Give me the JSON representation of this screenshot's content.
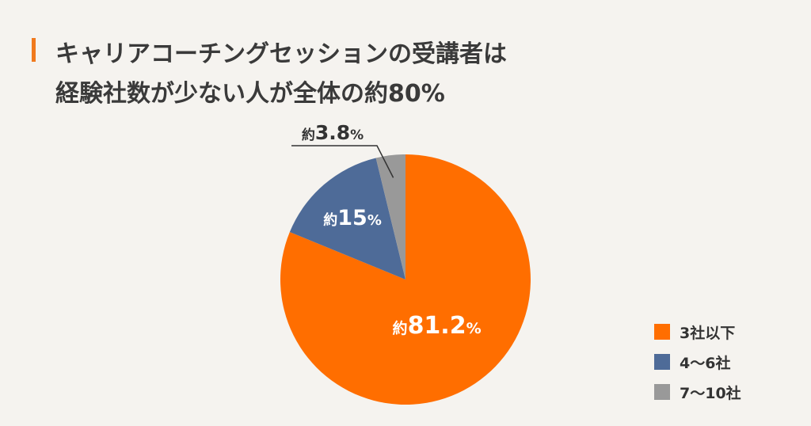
{
  "title": {
    "line1": "キャリアコーチングセッションの受講者は",
    "line2": "経験社数が少ない人が全体の約80%",
    "accent_color": "#f07a1e"
  },
  "chart_data": {
    "type": "pie",
    "categories": [
      "3社以下",
      "4〜6社",
      "7〜10社"
    ],
    "values": [
      81.2,
      15,
      3.8
    ],
    "colors": [
      "#ff6e00",
      "#4e6b98",
      "#999999"
    ],
    "data_labels": [
      {
        "prefix": "約",
        "value": "81.2",
        "unit": "%"
      },
      {
        "prefix": "約",
        "value": "15",
        "unit": "%"
      },
      {
        "prefix": "約",
        "value": "3.8",
        "unit": "%"
      }
    ],
    "legend_placement": "bottom-right"
  },
  "legend": {
    "items": [
      {
        "label": "3社以下",
        "color": "#ff6e00"
      },
      {
        "label": "4〜6社",
        "color": "#4e6b98"
      },
      {
        "label": "7〜10社",
        "color": "#999999"
      }
    ]
  }
}
